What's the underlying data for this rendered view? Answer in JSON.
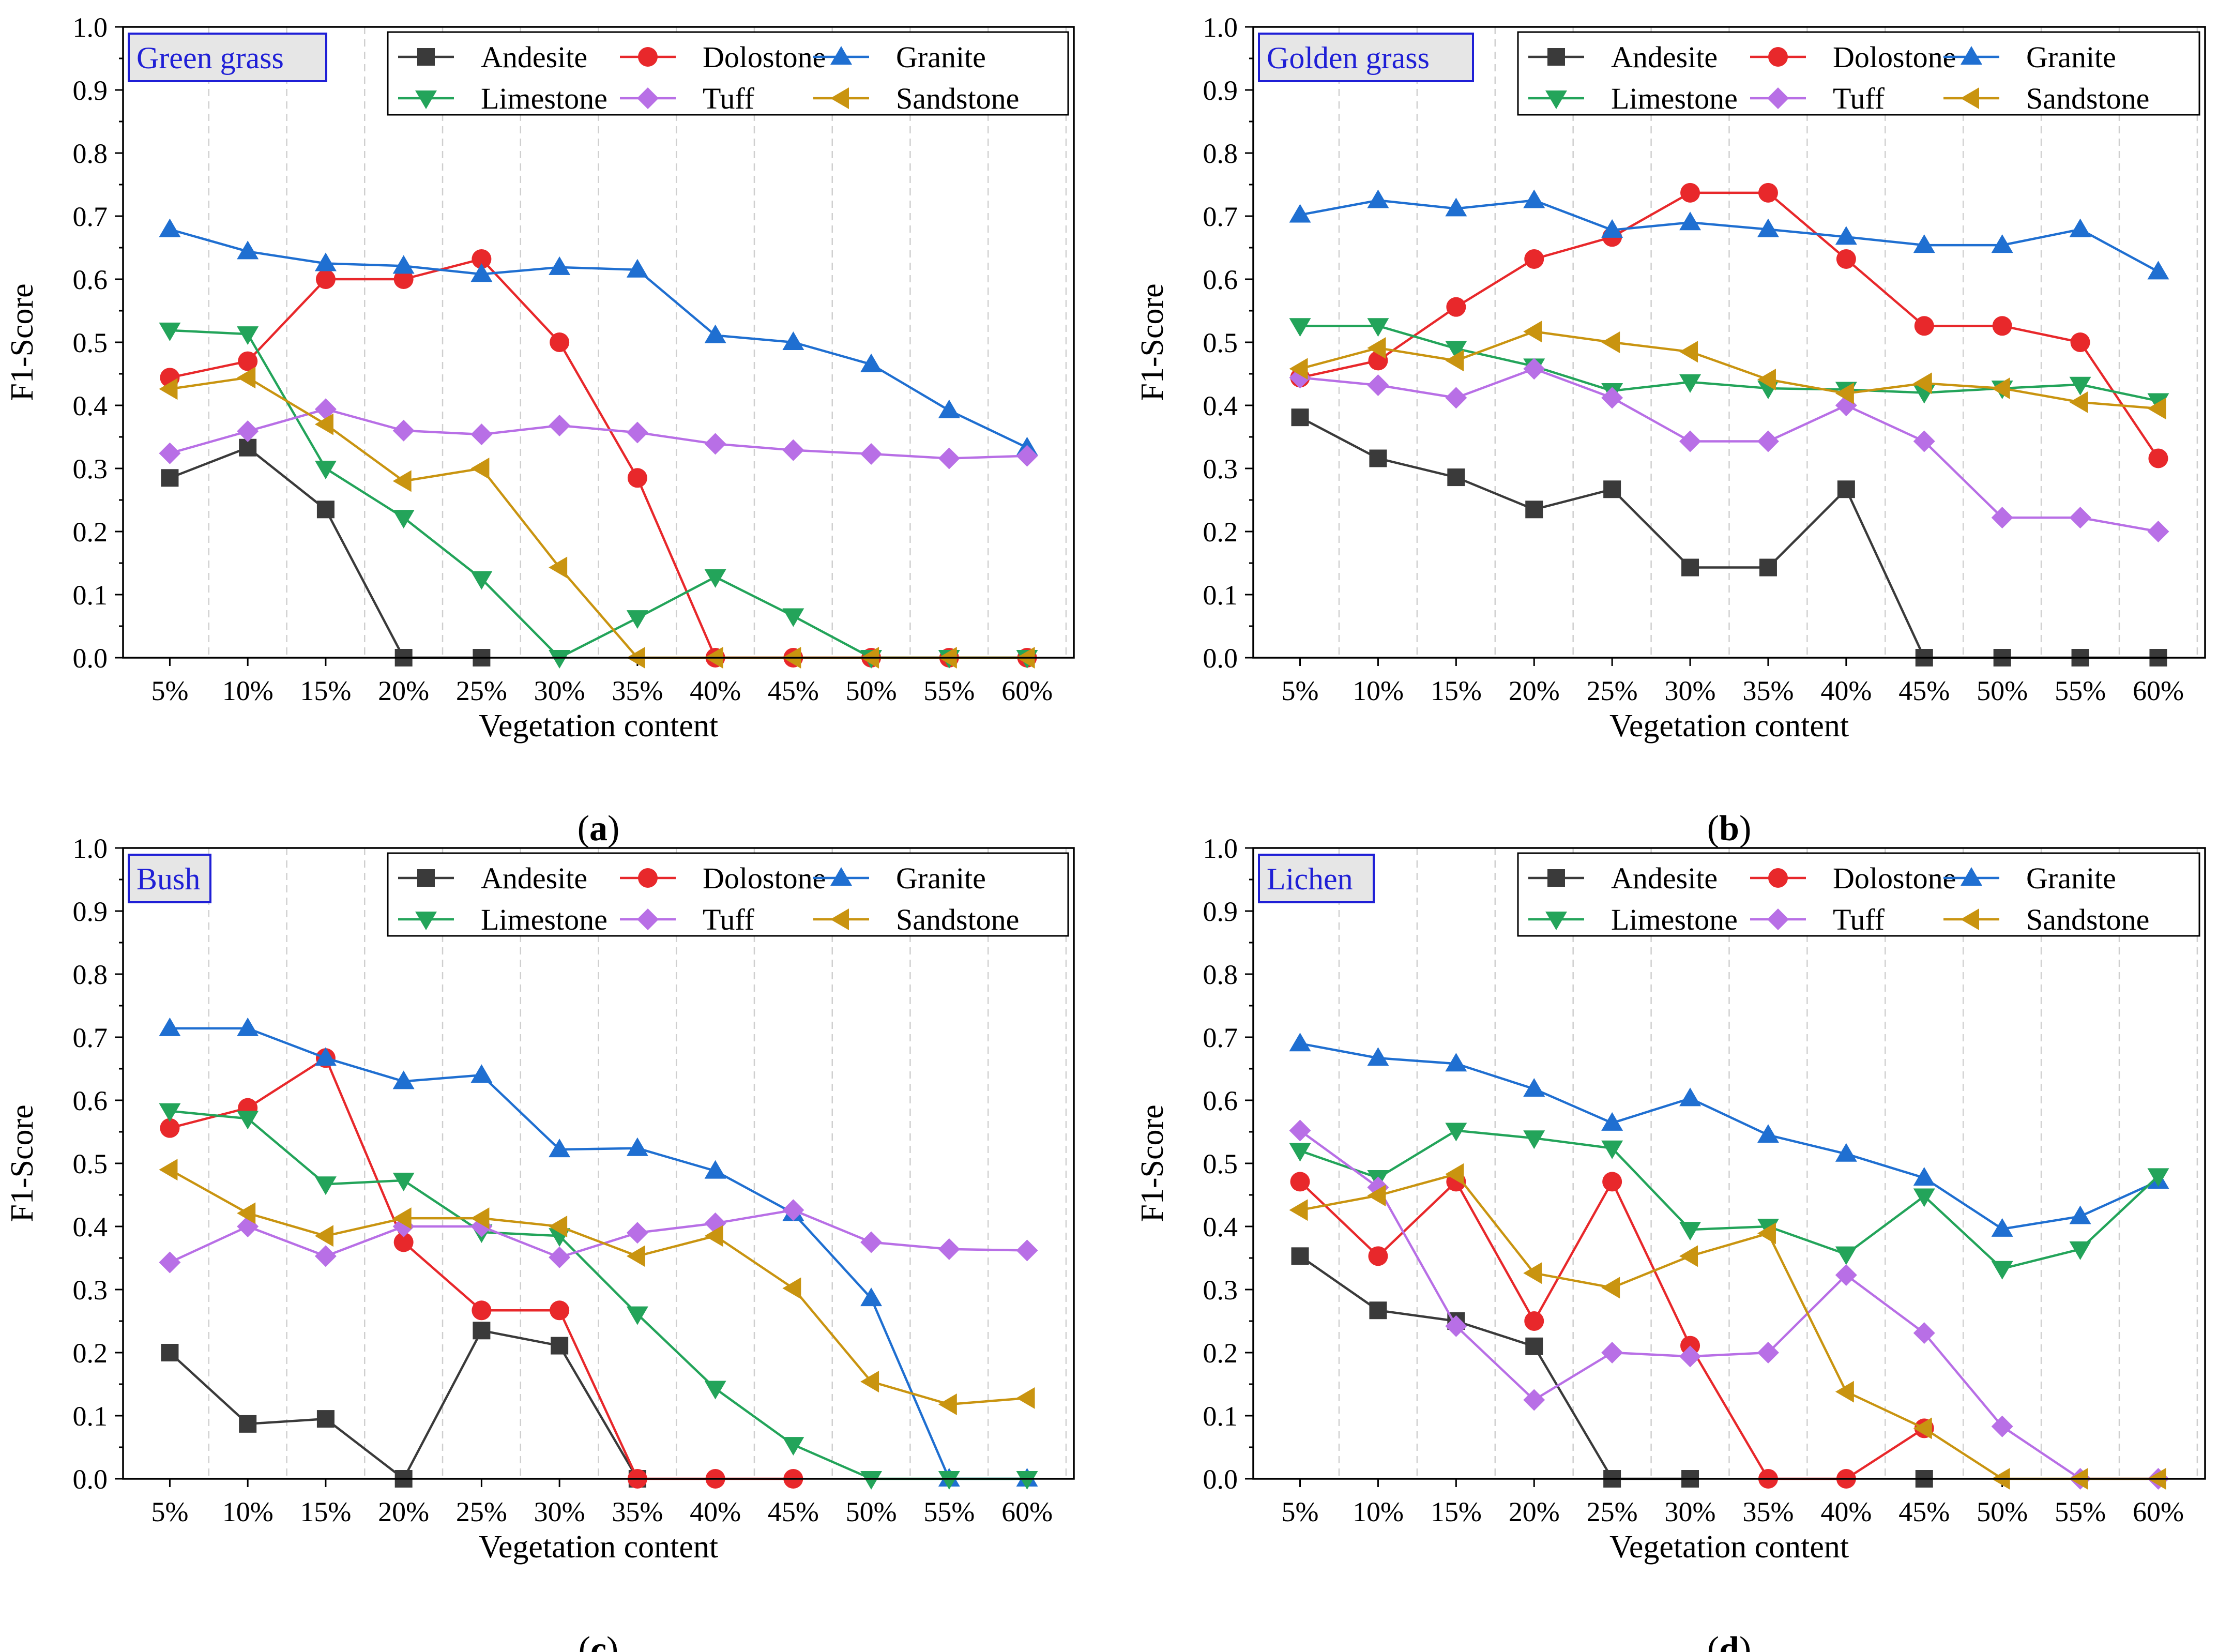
{
  "figure": {
    "x_categories": [
      "5%",
      "10%",
      "15%",
      "20%",
      "25%",
      "30%",
      "35%",
      "40%",
      "45%",
      "50%",
      "55%",
      "60%"
    ],
    "series_styles": [
      {
        "name": "Andesite",
        "color": "#3a3a3a",
        "marker": "square"
      },
      {
        "name": "Dolostone",
        "color": "#e8282b",
        "marker": "circle"
      },
      {
        "name": "Granite",
        "color": "#1f6fd1",
        "marker": "triangle-up"
      },
      {
        "name": "Limestone",
        "color": "#23a45a",
        "marker": "triangle-down"
      },
      {
        "name": "Tuff",
        "color": "#b86fe6",
        "marker": "diamond"
      },
      {
        "name": "Sandstone",
        "color": "#c99410",
        "marker": "triangle-left"
      }
    ]
  },
  "chart_data": [
    {
      "type": "line",
      "panel_label": "a",
      "title": "Green grass",
      "xlabel": "Vegetation content",
      "ylabel": "F1-Score",
      "ylim": [
        0,
        1.0
      ],
      "yticks": [
        "0.0",
        "0.1",
        "0.2",
        "0.3",
        "0.4",
        "0.5",
        "0.6",
        "0.7",
        "0.8",
        "0.9",
        "1.0"
      ],
      "categories": [
        "5%",
        "10%",
        "15%",
        "20%",
        "25%",
        "30%",
        "35%",
        "40%",
        "45%",
        "50%",
        "55%",
        "60%"
      ],
      "legend_position": "top-right",
      "series": [
        {
          "name": "Andesite",
          "values": [
            0.285,
            0.333,
            0.235,
            0,
            0,
            null,
            null,
            null,
            null,
            null,
            null,
            null
          ]
        },
        {
          "name": "Dolostone",
          "values": [
            0.444,
            0.47,
            0.6,
            0.6,
            0.632,
            0.5,
            0.285,
            0,
            0,
            0,
            0,
            0
          ]
        },
        {
          "name": "Granite",
          "values": [
            0.679,
            0.644,
            0.625,
            0.621,
            0.608,
            0.619,
            0.615,
            0.511,
            0.5,
            0.465,
            0.392,
            0.333
          ]
        },
        {
          "name": "Limestone",
          "values": [
            0.519,
            0.513,
            0.3,
            0.222,
            0.125,
            0,
            0.063,
            0.128,
            0.066,
            0,
            0,
            0
          ]
        },
        {
          "name": "Tuff",
          "values": [
            0.324,
            0.359,
            0.394,
            0.36,
            0.354,
            0.368,
            0.357,
            0.339,
            0.329,
            0.323,
            0.316,
            0.32
          ]
        },
        {
          "name": "Sandstone",
          "values": [
            0.426,
            0.444,
            0.37,
            0.28,
            0.3,
            0.143,
            0,
            0,
            0,
            0,
            0,
            0
          ]
        }
      ]
    },
    {
      "type": "line",
      "panel_label": "b",
      "title": "Golden grass",
      "xlabel": "Vegetation content",
      "ylabel": "F1-Score",
      "ylim": [
        0,
        1.0
      ],
      "yticks": [
        "0.0",
        "0.1",
        "0.2",
        "0.3",
        "0.4",
        "0.5",
        "0.6",
        "0.7",
        "0.8",
        "0.9",
        "1.0"
      ],
      "categories": [
        "5%",
        "10%",
        "15%",
        "20%",
        "25%",
        "30%",
        "35%",
        "40%",
        "45%",
        "50%",
        "55%",
        "60%"
      ],
      "legend_position": "top-right",
      "series": [
        {
          "name": "Andesite",
          "values": [
            0.381,
            0.316,
            0.286,
            0.235,
            0.267,
            0.143,
            0.143,
            0.267,
            0,
            0,
            0,
            0
          ]
        },
        {
          "name": "Dolostone",
          "values": [
            0.444,
            0.471,
            0.556,
            0.632,
            0.667,
            0.737,
            0.737,
            0.632,
            0.526,
            0.526,
            0.5,
            0.316
          ]
        },
        {
          "name": "Granite",
          "values": [
            0.702,
            0.725,
            0.712,
            0.725,
            0.678,
            0.69,
            0.679,
            0.667,
            0.654,
            0.654,
            0.679,
            0.612
          ]
        },
        {
          "name": "Limestone",
          "values": [
            0.526,
            0.526,
            0.49,
            0.462,
            0.423,
            0.437,
            0.427,
            0.425,
            0.42,
            0.427,
            0.433,
            0.407
          ]
        },
        {
          "name": "Tuff",
          "values": [
            0.444,
            0.432,
            0.412,
            0.458,
            0.412,
            0.343,
            0.343,
            0.4,
            0.343,
            0.222,
            0.222,
            0.2
          ]
        },
        {
          "name": "Sandstone",
          "values": [
            0.458,
            0.491,
            0.471,
            0.517,
            0.5,
            0.485,
            0.441,
            0.419,
            0.435,
            0.427,
            0.405,
            0.395
          ]
        }
      ]
    },
    {
      "type": "line",
      "panel_label": "c",
      "title": "Bush",
      "xlabel": "Vegetation content",
      "ylabel": "F1-Score",
      "ylim": [
        0,
        1.0
      ],
      "yticks": [
        "0.0",
        "0.1",
        "0.2",
        "0.3",
        "0.4",
        "0.5",
        "0.6",
        "0.7",
        "0.8",
        "0.9",
        "1.0"
      ],
      "categories": [
        "5%",
        "10%",
        "15%",
        "20%",
        "25%",
        "30%",
        "35%",
        "40%",
        "45%",
        "50%",
        "55%",
        "60%"
      ],
      "legend_position": "top-right",
      "series": [
        {
          "name": "Andesite",
          "values": [
            0.2,
            0.087,
            0.095,
            0,
            0.235,
            0.211,
            0,
            null,
            null,
            null,
            null,
            null
          ]
        },
        {
          "name": "Dolostone",
          "values": [
            0.556,
            0.588,
            0.667,
            0.375,
            0.267,
            0.267,
            0,
            0,
            0,
            null,
            null,
            null
          ]
        },
        {
          "name": "Granite",
          "values": [
            0.714,
            0.714,
            0.667,
            0.63,
            0.64,
            0.522,
            0.524,
            0.488,
            0.421,
            0.286,
            0,
            0
          ]
        },
        {
          "name": "Limestone",
          "values": [
            0.583,
            0.571,
            0.467,
            0.473,
            0.391,
            0.385,
            0.261,
            0.143,
            0.054,
            0,
            0,
            0
          ]
        },
        {
          "name": "Tuff",
          "values": [
            0.343,
            0.4,
            0.353,
            0.4,
            0.4,
            0.351,
            0.39,
            0.405,
            0.426,
            0.375,
            0.364,
            0.362
          ]
        },
        {
          "name": "Sandstone",
          "values": [
            0.49,
            0.421,
            0.385,
            0.413,
            0.413,
            0.4,
            0.353,
            0.385,
            0.302,
            0.154,
            0.118,
            0.128
          ]
        }
      ]
    },
    {
      "type": "line",
      "panel_label": "d",
      "title": "Lichen",
      "xlabel": "Vegetation content",
      "ylabel": "F1-Score",
      "ylim": [
        0,
        1.0
      ],
      "yticks": [
        "0.0",
        "0.1",
        "0.2",
        "0.3",
        "0.4",
        "0.5",
        "0.6",
        "0.7",
        "0.8",
        "0.9",
        "1.0"
      ],
      "categories": [
        "5%",
        "10%",
        "15%",
        "20%",
        "25%",
        "30%",
        "35%",
        "40%",
        "45%",
        "50%",
        "55%",
        "60%"
      ],
      "legend_position": "top-right",
      "series": [
        {
          "name": "Andesite",
          "values": [
            0.353,
            0.267,
            0.25,
            0.21,
            0,
            0,
            null,
            null,
            0,
            null,
            null,
            null
          ]
        },
        {
          "name": "Dolostone",
          "values": [
            0.471,
            0.353,
            0.471,
            0.25,
            0.471,
            0.211,
            0,
            0,
            0.08,
            null,
            null,
            null
          ]
        },
        {
          "name": "Granite",
          "values": [
            0.69,
            0.667,
            0.658,
            0.618,
            0.564,
            0.603,
            0.545,
            0.515,
            0.477,
            0.396,
            0.416,
            0.472
          ]
        },
        {
          "name": "Limestone",
          "values": [
            0.52,
            0.477,
            0.552,
            0.54,
            0.524,
            0.395,
            0.4,
            0.356,
            0.448,
            0.333,
            0.364,
            0.48
          ]
        },
        {
          "name": "Tuff",
          "values": [
            0.552,
            0.462,
            0.242,
            0.125,
            0.2,
            0.194,
            0.2,
            0.323,
            0.231,
            0.083,
            0,
            0
          ]
        },
        {
          "name": "Sandstone",
          "values": [
            0.426,
            0.449,
            0.483,
            0.326,
            0.303,
            0.353,
            0.389,
            0.138,
            0.08,
            0,
            0,
            0
          ]
        }
      ]
    }
  ]
}
